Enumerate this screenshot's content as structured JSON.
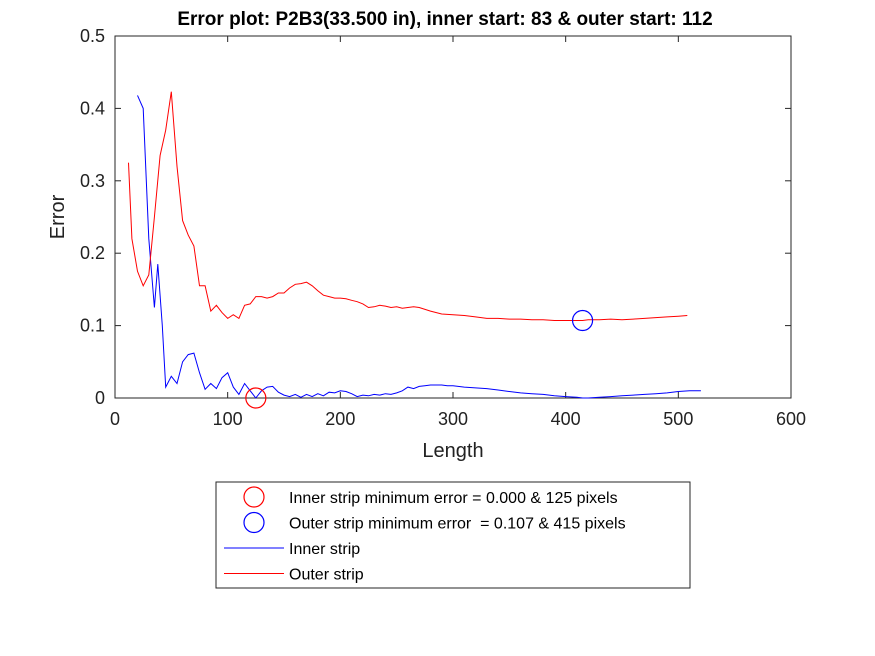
{
  "chart_data": {
    "type": "line",
    "title": "Error plot: P2B3(33.500 in), inner start: 83 & outer start: 112",
    "xlabel": "Length",
    "ylabel": "Error",
    "xlim": [
      0,
      600
    ],
    "ylim": [
      0,
      0.5
    ],
    "xticks": [
      0,
      100,
      200,
      300,
      400,
      500,
      600
    ],
    "yticks": [
      0,
      0.1,
      0.2,
      0.3,
      0.4,
      0.5
    ],
    "xtick_labels": [
      "0",
      "100",
      "200",
      "300",
      "400",
      "500",
      "600"
    ],
    "ytick_labels": [
      "0",
      "0.1",
      "0.2",
      "0.3",
      "0.4",
      "0.5"
    ],
    "grid": false,
    "legend_position": "bottom-outside",
    "series": [
      {
        "name": "Inner strip",
        "color": "#0000ff",
        "style": "line",
        "x": [
          20,
          25,
          30,
          35,
          38,
          42,
          45,
          50,
          55,
          60,
          65,
          70,
          75,
          80,
          85,
          90,
          95,
          100,
          105,
          110,
          115,
          120,
          125,
          130,
          135,
          140,
          145,
          150,
          155,
          160,
          165,
          170,
          175,
          180,
          185,
          190,
          195,
          200,
          205,
          210,
          215,
          220,
          225,
          230,
          235,
          240,
          245,
          250,
          255,
          260,
          265,
          270,
          275,
          280,
          285,
          290,
          295,
          300,
          310,
          320,
          330,
          340,
          350,
          360,
          370,
          380,
          390,
          400,
          410,
          415,
          420,
          430,
          440,
          450,
          460,
          470,
          480,
          490,
          500,
          510,
          520
        ],
        "y": [
          0.418,
          0.4,
          0.22,
          0.125,
          0.185,
          0.1,
          0.015,
          0.03,
          0.02,
          0.05,
          0.06,
          0.062,
          0.035,
          0.012,
          0.02,
          0.013,
          0.028,
          0.035,
          0.015,
          0.005,
          0.02,
          0.01,
          0.0,
          0.01,
          0.015,
          0.016,
          0.008,
          0.004,
          0.002,
          0.005,
          0.001,
          0.005,
          0.002,
          0.006,
          0.003,
          0.008,
          0.007,
          0.01,
          0.009,
          0.006,
          0.002,
          0.004,
          0.003,
          0.005,
          0.004,
          0.006,
          0.005,
          0.007,
          0.01,
          0.015,
          0.013,
          0.016,
          0.017,
          0.018,
          0.018,
          0.018,
          0.017,
          0.017,
          0.015,
          0.014,
          0.013,
          0.011,
          0.009,
          0.007,
          0.006,
          0.005,
          0.003,
          0.002,
          0.001,
          0.0,
          0.0,
          0.001,
          0.002,
          0.003,
          0.004,
          0.005,
          0.006,
          0.007,
          0.009,
          0.01,
          0.01
        ]
      },
      {
        "name": "Outer strip",
        "color": "#ff0000",
        "style": "line",
        "x": [
          12,
          15,
          20,
          25,
          30,
          35,
          40,
          45,
          50,
          55,
          60,
          65,
          70,
          75,
          80,
          85,
          90,
          95,
          100,
          105,
          110,
          115,
          120,
          125,
          130,
          135,
          140,
          145,
          150,
          155,
          160,
          165,
          170,
          175,
          180,
          185,
          190,
          195,
          200,
          205,
          210,
          215,
          220,
          225,
          230,
          235,
          240,
          245,
          250,
          255,
          260,
          265,
          270,
          280,
          290,
          300,
          310,
          320,
          330,
          340,
          350,
          360,
          370,
          380,
          390,
          400,
          410,
          415,
          420,
          430,
          440,
          450,
          460,
          470,
          480,
          490,
          500,
          508
        ],
        "y": [
          0.325,
          0.22,
          0.175,
          0.155,
          0.17,
          0.25,
          0.335,
          0.37,
          0.423,
          0.32,
          0.245,
          0.225,
          0.21,
          0.155,
          0.155,
          0.12,
          0.128,
          0.118,
          0.11,
          0.115,
          0.11,
          0.128,
          0.13,
          0.14,
          0.14,
          0.138,
          0.14,
          0.145,
          0.145,
          0.152,
          0.157,
          0.158,
          0.16,
          0.155,
          0.148,
          0.142,
          0.14,
          0.138,
          0.138,
          0.137,
          0.135,
          0.133,
          0.13,
          0.125,
          0.126,
          0.128,
          0.127,
          0.125,
          0.126,
          0.124,
          0.125,
          0.126,
          0.125,
          0.12,
          0.116,
          0.115,
          0.114,
          0.112,
          0.11,
          0.11,
          0.109,
          0.109,
          0.108,
          0.108,
          0.107,
          0.107,
          0.107,
          0.107,
          0.108,
          0.108,
          0.109,
          0.108,
          0.109,
          0.11,
          0.111,
          0.112,
          0.113,
          0.114
        ]
      },
      {
        "name": "Inner strip minimum error = 0.000 & 125 pixels",
        "color": "#ff0000",
        "style": "circle-marker",
        "x": [
          125
        ],
        "y": [
          0.0
        ]
      },
      {
        "name": "Outer strip minimum error  = 0.107 & 415 pixels",
        "color": "#0000ff",
        "style": "circle-marker",
        "x": [
          415
        ],
        "y": [
          0.107
        ]
      }
    ],
    "legend": [
      {
        "label": "Inner strip minimum error = 0.000 & 125 pixels",
        "color": "#ff0000",
        "kind": "circle"
      },
      {
        "label": "Outer strip minimum error  = 0.107 & 415 pixels",
        "color": "#0000ff",
        "kind": "circle"
      },
      {
        "label": "Inner strip",
        "color": "#0000ff",
        "kind": "line"
      },
      {
        "label": "Outer strip",
        "color": "#ff0000",
        "kind": "line"
      }
    ]
  }
}
